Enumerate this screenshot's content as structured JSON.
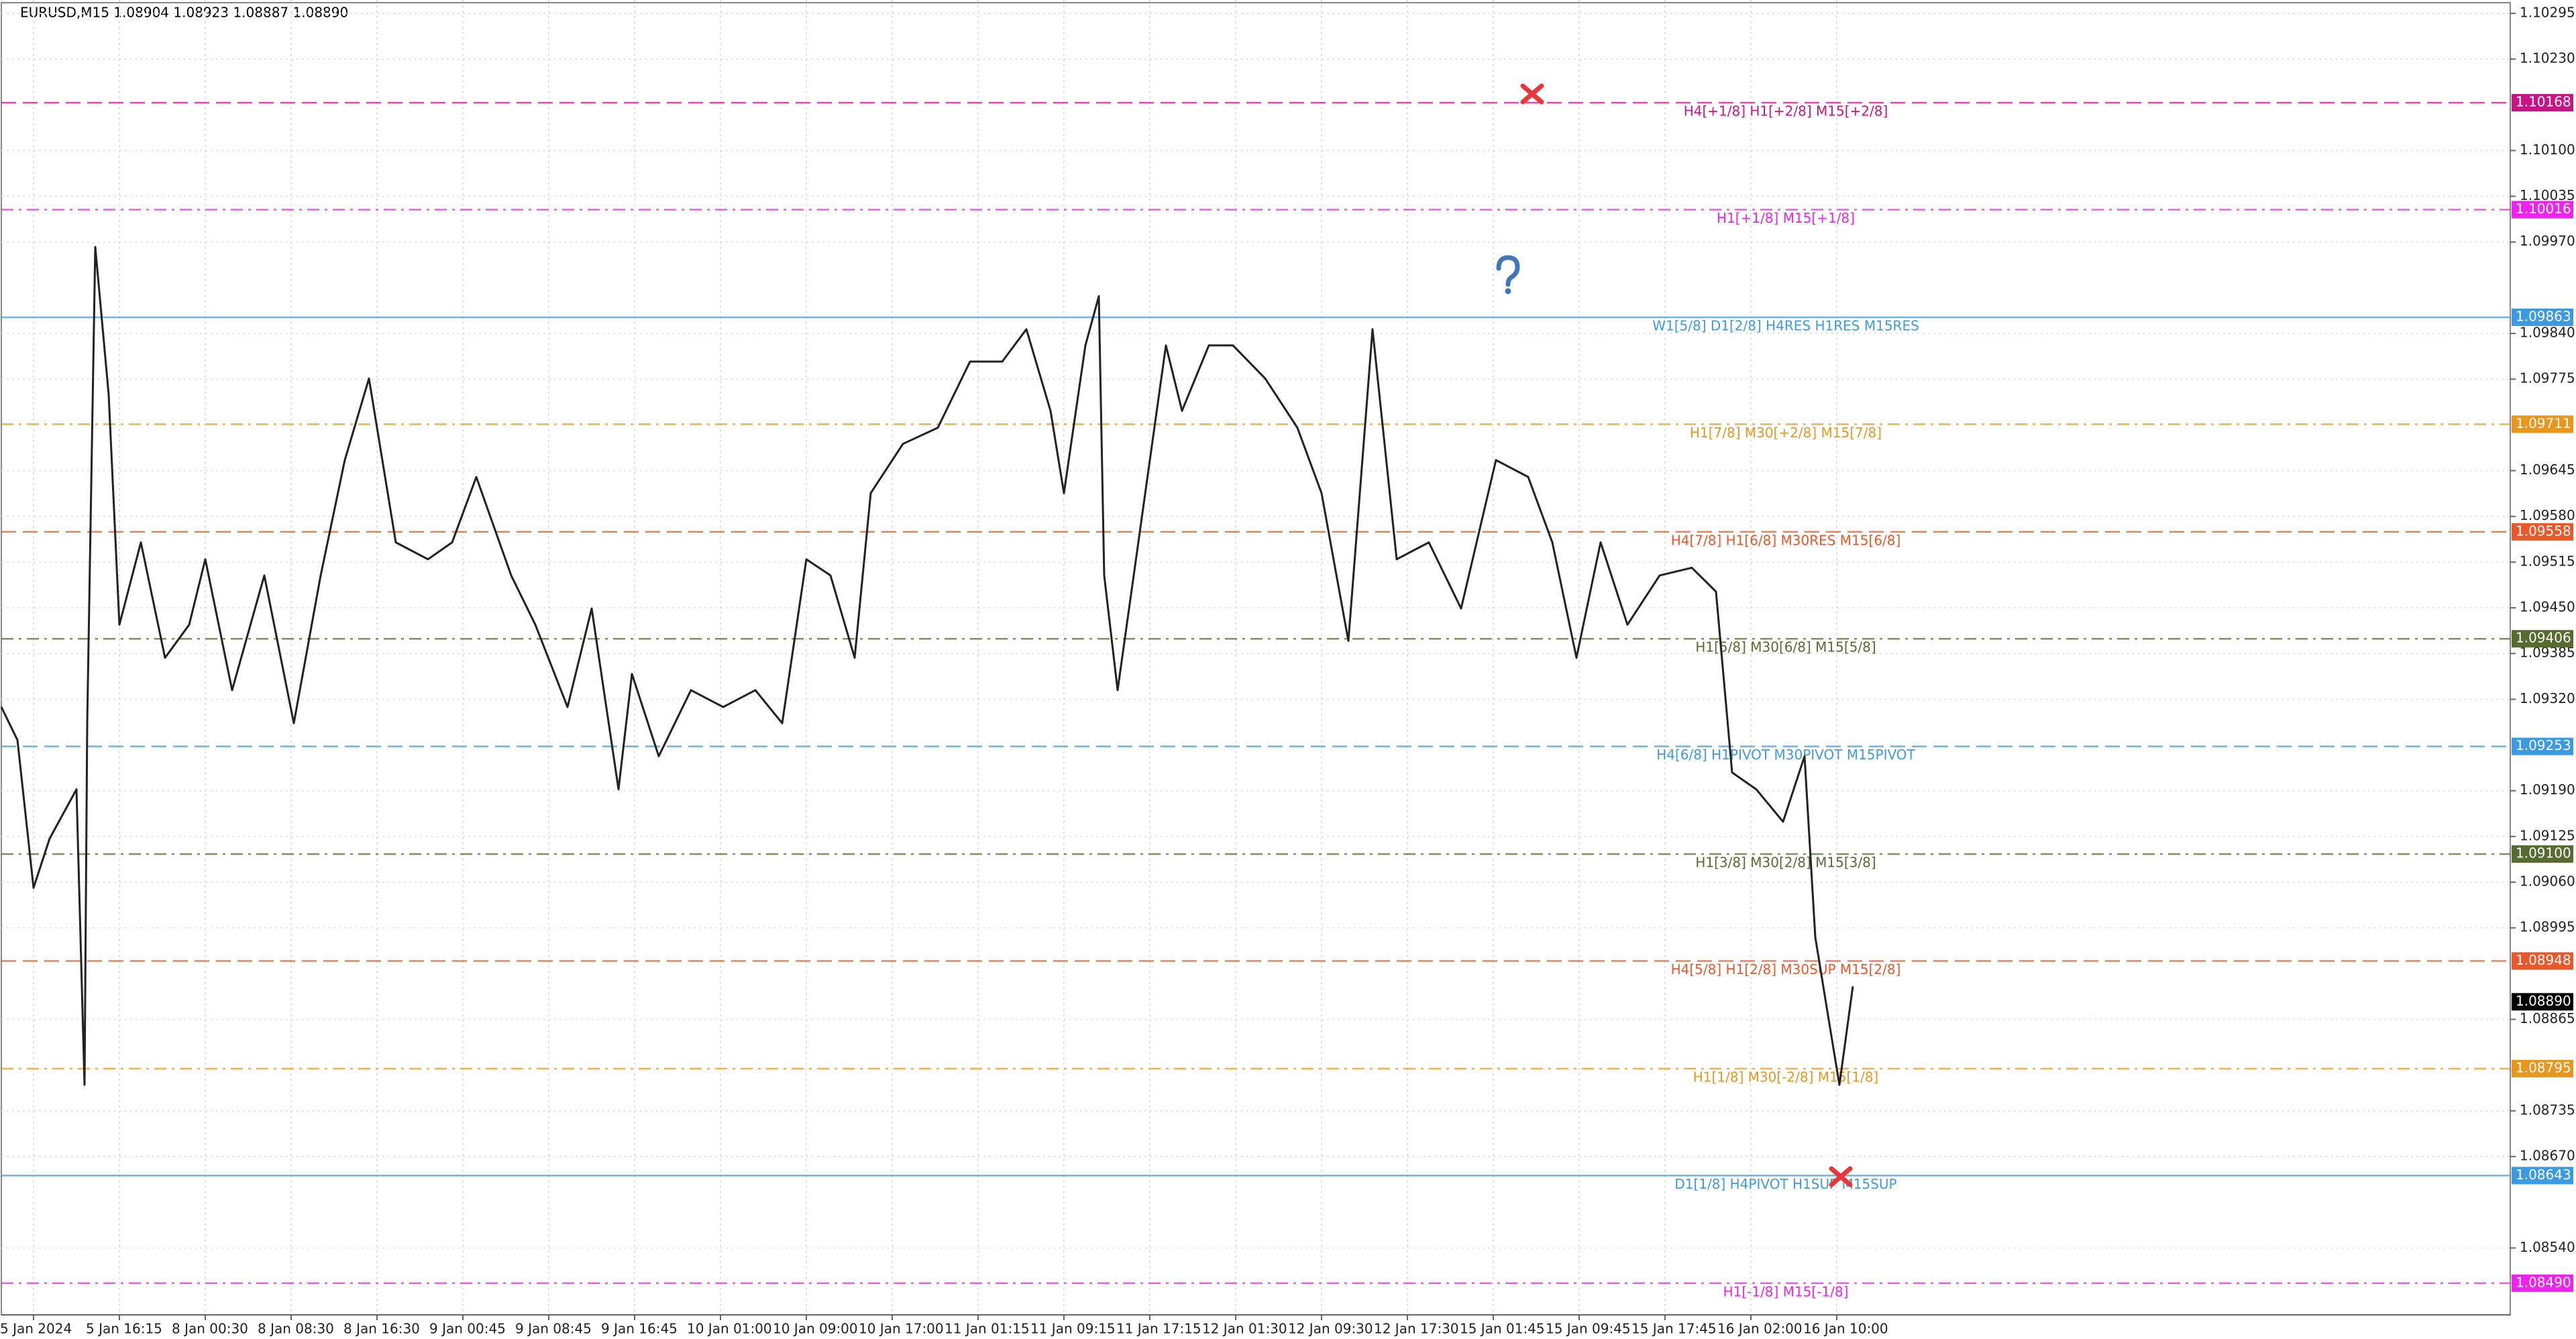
{
  "chart_data": {
    "type": "line",
    "title": "EURUSD,M15  1.08904 1.08923 1.08887 1.08890",
    "x": [
      0,
      6,
      12,
      18,
      28,
      31,
      32,
      35,
      40,
      44,
      52,
      61,
      70,
      76,
      86,
      98,
      109,
      119,
      128,
      137,
      147,
      159,
      168,
      177,
      190,
      199,
      211,
      220,
      230,
      235,
      245,
      257,
      269,
      281,
      291,
      300,
      309,
      318,
      324,
      336,
      349,
      361,
      373,
      382,
      391,
      396,
      404,
      409,
      411,
      416,
      422,
      434,
      440,
      450,
      459,
      471,
      483,
      492,
      502,
      511,
      520,
      532,
      544,
      557,
      569,
      578,
      587,
      596,
      606,
      618,
      630,
      639,
      645,
      654,
      664,
      672,
      676,
      680,
      685,
      690
    ],
    "values": [
      1.09309,
      1.09262,
      1.09052,
      1.09122,
      1.09192,
      1.08772,
      1.09286,
      1.09963,
      1.09753,
      1.09426,
      1.09543,
      1.09379,
      1.09426,
      1.09519,
      1.09333,
      1.09496,
      1.09286,
      1.09496,
      1.0966,
      1.09776,
      1.09543,
      1.09519,
      1.09543,
      1.09636,
      1.09496,
      1.09426,
      1.09309,
      1.09449,
      1.09192,
      1.09356,
      1.09239,
      1.09333,
      1.09309,
      1.09333,
      1.09286,
      1.09519,
      1.09496,
      1.09379,
      1.09613,
      1.09683,
      1.09706,
      1.098,
      1.098,
      1.09846,
      1.0973,
      1.09613,
      1.09823,
      1.09893,
      1.09496,
      1.09333,
      1.09496,
      1.09823,
      1.0973,
      1.09823,
      1.09823,
      1.09776,
      1.09706,
      1.09613,
      1.09403,
      1.09846,
      1.09519,
      1.09543,
      1.09449,
      1.0966,
      1.09636,
      1.09543,
      1.09379,
      1.09543,
      1.09426,
      1.09496,
      1.09507,
      1.09473,
      1.09216,
      1.09192,
      1.09146,
      1.09239,
      1.08982,
      1.08888,
      1.08772,
      1.08912
    ],
    "color": "#222222",
    "xlim": [
      0,
      935
    ],
    "ylim": [
      1.08445,
      1.10314
    ],
    "grid": true,
    "xticks": [
      {
        "value": 12,
        "label": "5 Jan 2024"
      },
      {
        "value": 44,
        "label": "5 Jan 16:15"
      },
      {
        "value": 76,
        "label": "8 Jan 00:30"
      },
      {
        "value": 108,
        "label": "8 Jan 08:30"
      },
      {
        "value": 140,
        "label": "8 Jan 16:30"
      },
      {
        "value": 172,
        "label": "9 Jan 00:45"
      },
      {
        "value": 204,
        "label": "9 Jan 08:45"
      },
      {
        "value": 236,
        "label": "9 Jan 16:45"
      },
      {
        "value": 268,
        "label": "10 Jan 01:00"
      },
      {
        "value": 300,
        "label": "10 Jan 09:00"
      },
      {
        "value": 332,
        "label": "10 Jan 17:00"
      },
      {
        "value": 364,
        "label": "11 Jan 01:15"
      },
      {
        "value": 396,
        "label": "11 Jan 09:15"
      },
      {
        "value": 428,
        "label": "11 Jan 17:15"
      },
      {
        "value": 460,
        "label": "12 Jan 01:30"
      },
      {
        "value": 492,
        "label": "12 Jan 09:30"
      },
      {
        "value": 524,
        "label": "12 Jan 17:30"
      },
      {
        "value": 556,
        "label": "15 Jan 01:45"
      },
      {
        "value": 588,
        "label": "15 Jan 09:45"
      },
      {
        "value": 620,
        "label": "15 Jan 17:45"
      },
      {
        "value": 652,
        "label": "16 Jan 02:00"
      },
      {
        "value": 684,
        "label": "16 Jan 10:00"
      }
    ],
    "yticks": [
      1.10295,
      {
        "value": 1.1023,
        "label": "1.10230"
      },
      {
        "value": 1.101,
        "label": "1.10100"
      },
      1.10035,
      {
        "value": 1.0997,
        "label": "1.09970"
      },
      {
        "value": 1.0984,
        "label": "1.09840"
      },
      1.09775,
      1.09645,
      {
        "value": 1.0958,
        "label": "1.09580"
      },
      1.09515,
      {
        "value": 1.0945,
        "label": "1.09450"
      },
      1.09385,
      {
        "value": 1.0932,
        "label": "1.09320"
      },
      {
        "value": 1.0919,
        "label": "1.09190"
      },
      1.09125,
      {
        "value": 1.0906,
        "label": "1.09060"
      },
      1.08995,
      1.08865,
      1.08735,
      {
        "value": 1.0867,
        "label": "1.08670"
      },
      {
        "value": 1.0854,
        "label": "1.08540"
      }
    ],
    "levels": [
      {
        "name": "H4[+1/8] H1[+2/8] M15[+2/8]",
        "value": 1.10168,
        "color": "#c71585",
        "style": "dashed"
      },
      {
        "name": "H1[+1/8] M15[+1/8]",
        "value": 1.10016,
        "color": "#ee22ee",
        "style": "dashdot"
      },
      {
        "name": "W1[5/8] D1[2/8] H4RES H1RES M15RES",
        "value": 1.09863,
        "color": "#3c9be0",
        "style": "solid"
      },
      {
        "name": "H1[7/8] M30[+2/8] M15[7/8]",
        "value": 1.09711,
        "color": "#e8961e",
        "style": "dashdot"
      },
      {
        "name": "H4[7/8] H1[6/8] M30RES M15[6/8]",
        "value": 1.09558,
        "color": "#e8582a",
        "style": "dashed"
      },
      {
        "name": "H1[5/8] M30[6/8] M15[5/8]",
        "value": 1.09406,
        "color": "#556b2f",
        "style": "dashdot"
      },
      {
        "name": "H4[6/8] H1PIVOT M30PIVOT M15PIVOT",
        "value": 1.09253,
        "color": "#3c9be0",
        "style": "dashed"
      },
      {
        "name": "H1[3/8] M30[2/8] M15[3/8]",
        "value": 1.091,
        "value_label": "1.09100",
        "color": "#556b2f",
        "style": "dashdot"
      },
      {
        "name": "H4[5/8] H1[2/8] M30SUP M15[2/8]",
        "value": 1.08948,
        "color": "#e8582a",
        "style": "dashed"
      },
      {
        "name": "H1[1/8] M30[-2/8] M15[1/8]",
        "value": 1.08795,
        "color": "#e8961e",
        "style": "dashdot"
      },
      {
        "name": "D1[1/8] H4PIVOT H1SUP M15SUP",
        "value": 1.08643,
        "color": "#3c9be0",
        "style": "solid"
      },
      {
        "name": "H1[-1/8] M15[-1/8]",
        "value": 1.0849,
        "value_label": "1.08490",
        "color": "#ee22ee",
        "style": "dashdot"
      }
    ],
    "last_price": 1.0889,
    "last_price_label": "1.08890"
  }
}
